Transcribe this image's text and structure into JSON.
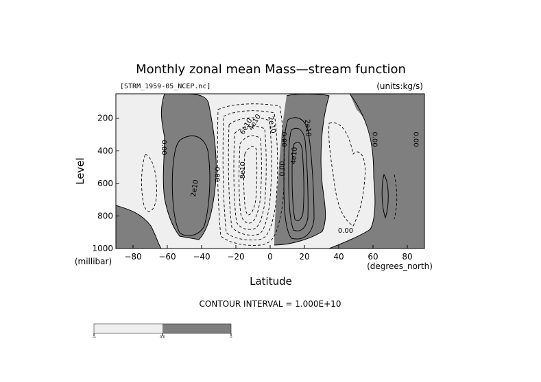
{
  "chart_data": {
    "type": "contour",
    "title": "Monthly zonal mean Mass—stream function",
    "source_file": "[STRM_1959-05_NCEP.nc]",
    "units": "(units:kg/s)",
    "xlabel": "Latitude",
    "x_units": "(degrees_north)",
    "ylabel": "Level",
    "y_units": "(millibar)",
    "xlim": [
      -90,
      90
    ],
    "ylim": [
      1000,
      50
    ],
    "y_inverted": true,
    "x_ticks": [
      -80,
      -60,
      -40,
      -20,
      0,
      20,
      40,
      60,
      80
    ],
    "y_ticks": [
      200,
      400,
      600,
      800,
      1000
    ],
    "contour_interval_text": "CONTOUR INTERVAL = 1.000E+10",
    "contour_interval": 10000000000,
    "contour_labels": [
      {
        "text": "0.00",
        "x": -62,
        "y": 380,
        "rotate": 90
      },
      {
        "text": "2e10",
        "x": -44,
        "y": 630,
        "rotate": -80
      },
      {
        "text": "0.00",
        "x": -31,
        "y": 545,
        "rotate": 90
      },
      {
        "text": "8e10",
        "x": -16,
        "y": 520,
        "rotate": -90
      },
      {
        "text": "6e10",
        "x": -14,
        "y": 250,
        "rotate": -60
      },
      {
        "text": "4e10",
        "x": -9,
        "y": 225,
        "rotate": -60
      },
      {
        "text": "2e10",
        "x": 1,
        "y": 240,
        "rotate": 80
      },
      {
        "text": "0.00",
        "x": 8,
        "y": 330,
        "rotate": 90
      },
      {
        "text": "0.00",
        "x": 7,
        "y": 510,
        "rotate": -90
      },
      {
        "text": "4e10",
        "x": 14,
        "y": 430,
        "rotate": -85
      },
      {
        "text": "2e10",
        "x": 22,
        "y": 260,
        "rotate": 85
      },
      {
        "text": "0.00",
        "x": 44,
        "y": 890,
        "rotate": 0
      },
      {
        "text": "0.00",
        "x": 61,
        "y": 330,
        "rotate": 90
      },
      {
        "text": "0.00",
        "x": 85,
        "y": 330,
        "rotate": 90
      }
    ],
    "colorbar": {
      "ticks": [
        "-∞",
        "0.0",
        "∞"
      ],
      "colors": [
        "#efefef",
        "#7f7f7f"
      ]
    },
    "colors": {
      "positive": "#7f7f7f",
      "negative": "#efefef",
      "frame": "#000000"
    }
  }
}
